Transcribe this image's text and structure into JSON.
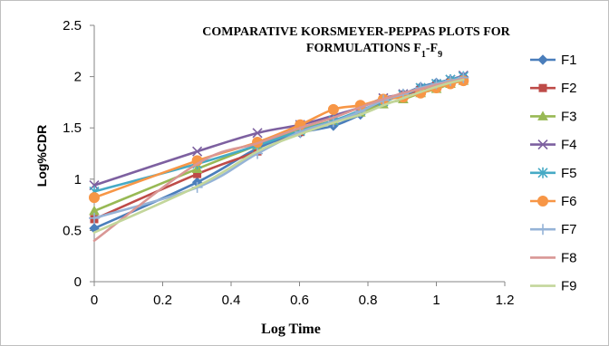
{
  "chart_data": {
    "type": "line",
    "title_line1": "COMPARATIVE KORSMEYER-PEPPAS PLOTS FOR",
    "title_line2_main": "FORMULATIONS F",
    "title_sub1": "1",
    "title_dash": "-F",
    "title_sub2": "9",
    "xlabel": "Log Time",
    "ylabel": "Log%CDR",
    "xlim": [
      0,
      1.2
    ],
    "ylim": [
      0,
      2.5
    ],
    "x_ticks": [
      "0",
      "0.2",
      "0.4",
      "0.6",
      "0.8",
      "1",
      "1.2"
    ],
    "y_ticks": [
      "0",
      "0.5",
      "1",
      "1.5",
      "2",
      "2.5"
    ],
    "x_tick_values": [
      0,
      0.2,
      0.4,
      0.6,
      0.8,
      1.0,
      1.2
    ],
    "y_tick_values": [
      0,
      0.5,
      1.0,
      1.5,
      2.0,
      2.5
    ],
    "grid": false,
    "legend_position": "right",
    "x": [
      0,
      0.301,
      0.477,
      0.602,
      0.699,
      0.778,
      0.845,
      0.903,
      0.954,
      1.0,
      1.041,
      1.079
    ],
    "series": [
      {
        "name": "F1",
        "color": "#4a7ebb",
        "marker": "diamond",
        "values": [
          0.52,
          0.97,
          1.3,
          1.45,
          1.52,
          1.63,
          1.75,
          1.83,
          1.9,
          1.94,
          1.97,
          2.0
        ]
      },
      {
        "name": "F2",
        "color": "#be4b48",
        "marker": "square",
        "values": [
          0.61,
          1.05,
          1.27,
          1.46,
          1.57,
          1.66,
          1.76,
          1.82,
          1.87,
          1.91,
          1.94,
          1.96
        ]
      },
      {
        "name": "F3",
        "color": "#98b954",
        "marker": "triangle",
        "values": [
          0.69,
          1.1,
          1.33,
          1.48,
          1.57,
          1.65,
          1.73,
          1.78,
          1.84,
          1.88,
          1.93,
          1.96
        ]
      },
      {
        "name": "F4",
        "color": "#7d60a0",
        "marker": "x",
        "values": [
          0.94,
          1.27,
          1.45,
          1.53,
          1.62,
          1.7,
          1.79,
          1.83,
          1.89,
          1.93,
          1.97,
          2.01
        ]
      },
      {
        "name": "F5",
        "color": "#46aac5",
        "marker": "star",
        "values": [
          0.88,
          1.15,
          1.33,
          1.47,
          1.57,
          1.67,
          1.76,
          1.82,
          1.89,
          1.93,
          1.97,
          2.0
        ]
      },
      {
        "name": "F6",
        "color": "#f79646",
        "marker": "circle",
        "values": [
          0.82,
          1.18,
          1.36,
          1.53,
          1.68,
          1.72,
          1.78,
          1.8,
          1.84,
          1.89,
          1.93,
          1.96
        ]
      },
      {
        "name": "F7",
        "color": "#95b3d7",
        "marker": "plus",
        "values": [
          0.62,
          0.92,
          1.25,
          1.46,
          1.56,
          1.66,
          1.77,
          1.83,
          1.89,
          1.93,
          1.96,
          1.99
        ]
      },
      {
        "name": "F8",
        "color": "#d99795",
        "marker": "none",
        "values": [
          0.4,
          1.15,
          1.35,
          1.5,
          1.6,
          1.7,
          1.78,
          1.84,
          1.88,
          1.92,
          1.95,
          1.98
        ]
      },
      {
        "name": "F9",
        "color": "#c3d69b",
        "marker": "none",
        "values": [
          0.48,
          0.93,
          1.27,
          1.44,
          1.55,
          1.63,
          1.72,
          1.79,
          1.85,
          1.9,
          1.94,
          1.97
        ]
      }
    ]
  }
}
